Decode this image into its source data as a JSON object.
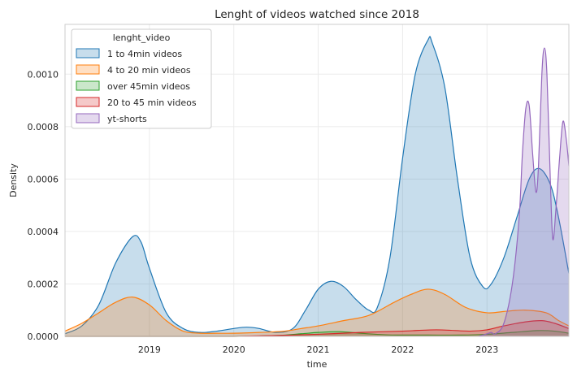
{
  "chart_data": {
    "type": "area",
    "title": "Lenght of videos watched since 2018",
    "xlabel": "time",
    "ylabel": "Density",
    "xlim": [
      2018.0,
      2023.97
    ],
    "ylim": [
      0,
      0.00119
    ],
    "x_ticks": [
      {
        "value": 2019.0,
        "label": "2019"
      },
      {
        "value": 2020.0,
        "label": "2020"
      },
      {
        "value": 2021.0,
        "label": "2021"
      },
      {
        "value": 2022.0,
        "label": "2022"
      },
      {
        "value": 2023.0,
        "label": "2023"
      }
    ],
    "y_ticks": [
      {
        "value": 0.0,
        "label": "0.0000"
      },
      {
        "value": 0.0002,
        "label": "0.0002"
      },
      {
        "value": 0.0004,
        "label": "0.0004"
      },
      {
        "value": 0.0006,
        "label": "0.0006"
      },
      {
        "value": 0.0008,
        "label": "0.0008"
      },
      {
        "value": 0.001,
        "label": "0.0010"
      }
    ],
    "grid": true,
    "legend": {
      "title": "lenght_video",
      "placement": "top-left"
    },
    "series": [
      {
        "name": "1 to 4min videos",
        "color": "#1f77b4",
        "points": [
          [
            2018.0,
            1e-05
          ],
          [
            2018.2,
            4e-05
          ],
          [
            2018.4,
            0.00012
          ],
          [
            2018.6,
            0.00028
          ],
          [
            2018.8,
            0.00038
          ],
          [
            2018.9,
            0.00036
          ],
          [
            2019.0,
            0.00026
          ],
          [
            2019.2,
            9e-05
          ],
          [
            2019.4,
            3e-05
          ],
          [
            2019.6,
            1.5e-05
          ],
          [
            2019.8,
            2e-05
          ],
          [
            2020.0,
            3e-05
          ],
          [
            2020.15,
            3.5e-05
          ],
          [
            2020.3,
            3e-05
          ],
          [
            2020.5,
            1.5e-05
          ],
          [
            2020.7,
            3e-05
          ],
          [
            2020.85,
            0.0001
          ],
          [
            2021.0,
            0.00018
          ],
          [
            2021.15,
            0.00021
          ],
          [
            2021.3,
            0.00019
          ],
          [
            2021.45,
            0.00014
          ],
          [
            2021.6,
            0.0001
          ],
          [
            2021.7,
            0.00011
          ],
          [
            2021.85,
            0.0003
          ],
          [
            2022.0,
            0.00068
          ],
          [
            2022.15,
            0.001
          ],
          [
            2022.3,
            0.00113
          ],
          [
            2022.35,
            0.00112
          ],
          [
            2022.5,
            0.00095
          ],
          [
            2022.65,
            0.0006
          ],
          [
            2022.8,
            0.0003
          ],
          [
            2022.95,
            0.00019
          ],
          [
            2023.05,
            0.0002
          ],
          [
            2023.2,
            0.0003
          ],
          [
            2023.35,
            0.00045
          ],
          [
            2023.5,
            0.0006
          ],
          [
            2023.62,
            0.00064
          ],
          [
            2023.75,
            0.00058
          ],
          [
            2023.85,
            0.00045
          ],
          [
            2023.97,
            0.00024
          ]
        ]
      },
      {
        "name": "4 to 20 min videos",
        "color": "#ff7f0e",
        "points": [
          [
            2018.0,
            2e-05
          ],
          [
            2018.2,
            5e-05
          ],
          [
            2018.4,
            9e-05
          ],
          [
            2018.6,
            0.00013
          ],
          [
            2018.8,
            0.00015
          ],
          [
            2019.0,
            0.00012
          ],
          [
            2019.2,
            6e-05
          ],
          [
            2019.4,
            2e-05
          ],
          [
            2019.6,
            1.2e-05
          ],
          [
            2019.8,
            1.2e-05
          ],
          [
            2020.0,
            1.2e-05
          ],
          [
            2020.3,
            1.5e-05
          ],
          [
            2020.6,
            2e-05
          ],
          [
            2020.8,
            3e-05
          ],
          [
            2021.0,
            4e-05
          ],
          [
            2021.3,
            6e-05
          ],
          [
            2021.6,
            8e-05
          ],
          [
            2021.9,
            0.00013
          ],
          [
            2022.1,
            0.00016
          ],
          [
            2022.3,
            0.00018
          ],
          [
            2022.5,
            0.00016
          ],
          [
            2022.75,
            0.00011
          ],
          [
            2023.0,
            9e-05
          ],
          [
            2023.2,
            9.5e-05
          ],
          [
            2023.45,
            0.0001
          ],
          [
            2023.7,
            9e-05
          ],
          [
            2023.85,
            6e-05
          ],
          [
            2023.97,
            4e-05
          ]
        ]
      },
      {
        "name": "over 45min videos",
        "color": "#2ca02c",
        "points": [
          [
            2018.0,
            0.0
          ],
          [
            2018.5,
            0.0
          ],
          [
            2019.0,
            0.0
          ],
          [
            2019.5,
            0.0
          ],
          [
            2020.0,
            0.0
          ],
          [
            2020.5,
            3e-06
          ],
          [
            2020.8,
            1e-05
          ],
          [
            2021.0,
            1.5e-05
          ],
          [
            2021.25,
            1.8e-05
          ],
          [
            2021.5,
            1.2e-05
          ],
          [
            2021.8,
            6e-06
          ],
          [
            2022.0,
            5e-06
          ],
          [
            2022.3,
            5e-06
          ],
          [
            2022.7,
            5e-06
          ],
          [
            2023.0,
            8e-06
          ],
          [
            2023.3,
            1.5e-05
          ],
          [
            2023.6,
            2.2e-05
          ],
          [
            2023.8,
            2e-05
          ],
          [
            2023.97,
            1.2e-05
          ]
        ]
      },
      {
        "name": "20 to 45 min videos",
        "color": "#d62728",
        "points": [
          [
            2018.0,
            0.0
          ],
          [
            2018.5,
            0.0
          ],
          [
            2019.0,
            0.0
          ],
          [
            2019.5,
            0.0
          ],
          [
            2020.0,
            0.0
          ],
          [
            2020.5,
            3e-06
          ],
          [
            2021.0,
            8e-06
          ],
          [
            2021.5,
            1.5e-05
          ],
          [
            2022.0,
            2e-05
          ],
          [
            2022.4,
            2.5e-05
          ],
          [
            2022.8,
            2e-05
          ],
          [
            2023.0,
            2.5e-05
          ],
          [
            2023.2,
            4e-05
          ],
          [
            2023.45,
            5.5e-05
          ],
          [
            2023.65,
            6e-05
          ],
          [
            2023.8,
            5e-05
          ],
          [
            2023.97,
            3e-05
          ]
        ]
      },
      {
        "name": "yt-shorts",
        "color": "#9467bd",
        "points": [
          [
            2022.9,
            0.0
          ],
          [
            2023.0,
            1e-05
          ],
          [
            2023.05,
            1.5e-05
          ],
          [
            2023.1,
            1e-05
          ],
          [
            2023.2,
            5e-05
          ],
          [
            2023.3,
            0.0002
          ],
          [
            2023.38,
            0.00045
          ],
          [
            2023.42,
            0.0007
          ],
          [
            2023.46,
            0.00087
          ],
          [
            2023.5,
            0.00088
          ],
          [
            2023.54,
            0.0007
          ],
          [
            2023.58,
            0.00055
          ],
          [
            2023.61,
            0.00065
          ],
          [
            2023.65,
            0.001
          ],
          [
            2023.68,
            0.0011
          ],
          [
            2023.71,
            0.001
          ],
          [
            2023.75,
            0.0006
          ],
          [
            2023.78,
            0.00037
          ],
          [
            2023.82,
            0.0005
          ],
          [
            2023.86,
            0.00068
          ],
          [
            2023.9,
            0.00082
          ],
          [
            2023.94,
            0.00075
          ],
          [
            2023.97,
            0.00065
          ]
        ]
      }
    ]
  }
}
